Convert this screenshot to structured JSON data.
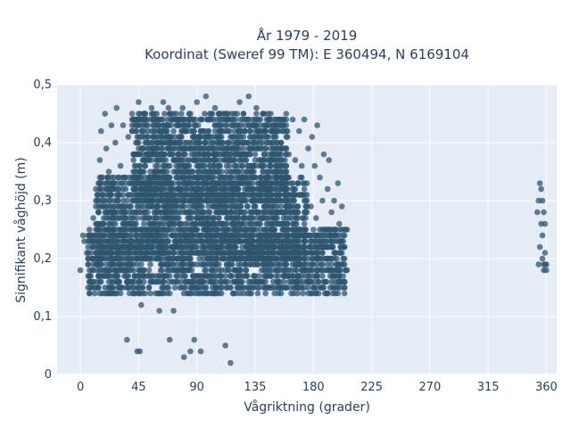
{
  "chart_data": {
    "type": "scatter",
    "title_line1": "År 1979 - 2019",
    "title_line2": "Koordinat (Sweref 99 TM): E 360494, N 6169104",
    "xlabel": "Vågriktning (grader)",
    "ylabel": "Signifikant våghöjd (m)",
    "xlim": [
      -18,
      368
    ],
    "ylim": [
      0,
      0.5
    ],
    "xticks": [
      0,
      45,
      90,
      135,
      180,
      225,
      270,
      315,
      360
    ],
    "xtick_labels": [
      "0",
      "45",
      "90",
      "135",
      "180",
      "225",
      "270",
      "315",
      "360"
    ],
    "yticks": [
      0,
      0.1,
      0.2,
      0.3,
      0.4,
      0.5
    ],
    "ytick_labels": [
      "0",
      "0,1",
      "0,2",
      "0,3",
      "0,4",
      "0,5"
    ],
    "grid": true,
    "background": "#e5ecf6",
    "marker_color": "#2f5670",
    "points": [
      [
        0,
        0.18
      ],
      [
        2,
        0.24
      ],
      [
        3,
        0.23
      ],
      [
        5,
        0.21
      ],
      [
        6,
        0.19
      ],
      [
        7,
        0.17
      ],
      [
        8,
        0.16
      ],
      [
        9,
        0.2
      ],
      [
        10,
        0.22
      ],
      [
        10,
        0.27
      ],
      [
        12,
        0.29
      ],
      [
        12,
        0.25
      ],
      [
        13,
        0.18
      ],
      [
        14,
        0.15
      ],
      [
        15,
        0.33
      ],
      [
        15,
        0.37
      ],
      [
        16,
        0.42
      ],
      [
        17,
        0.31
      ],
      [
        18,
        0.26
      ],
      [
        18,
        0.21
      ],
      [
        19,
        0.45
      ],
      [
        20,
        0.39
      ],
      [
        21,
        0.28
      ],
      [
        22,
        0.35
      ],
      [
        23,
        0.19
      ],
      [
        24,
        0.43
      ],
      [
        25,
        0.32
      ],
      [
        26,
        0.24
      ],
      [
        27,
        0.4
      ],
      [
        28,
        0.16
      ],
      [
        28,
        0.46
      ],
      [
        29,
        0.3
      ],
      [
        30,
        0.27
      ],
      [
        31,
        0.36
      ],
      [
        32,
        0.22
      ],
      [
        33,
        0.43
      ],
      [
        34,
        0.34
      ],
      [
        35,
        0.18
      ],
      [
        36,
        0.06
      ],
      [
        37,
        0.41
      ],
      [
        38,
        0.29
      ],
      [
        39,
        0.25
      ],
      [
        40,
        0.45
      ],
      [
        41,
        0.38
      ],
      [
        41,
        0.14
      ],
      [
        42,
        0.44
      ],
      [
        43,
        0.33
      ],
      [
        44,
        0.04
      ],
      [
        44,
        0.21
      ],
      [
        45,
        0.47
      ],
      [
        46,
        0.04
      ],
      [
        46,
        0.36
      ],
      [
        47,
        0.12
      ],
      [
        48,
        0.42
      ],
      [
        49,
        0.28
      ],
      [
        50,
        0.2
      ],
      [
        50,
        0.45
      ],
      [
        52,
        0.39
      ],
      [
        53,
        0.32
      ],
      [
        54,
        0.24
      ],
      [
        55,
        0.46
      ],
      [
        56,
        0.17
      ],
      [
        57,
        0.41
      ],
      [
        58,
        0.35
      ],
      [
        59,
        0.27
      ],
      [
        60,
        0.44
      ],
      [
        61,
        0.11
      ],
      [
        62,
        0.38
      ],
      [
        63,
        0.3
      ],
      [
        64,
        0.47
      ],
      [
        65,
        0.22
      ],
      [
        66,
        0.42
      ],
      [
        67,
        0.34
      ],
      [
        68,
        0.46
      ],
      [
        69,
        0.06
      ],
      [
        70,
        0.26
      ],
      [
        71,
        0.4
      ],
      [
        72,
        0.11
      ],
      [
        73,
        0.31
      ],
      [
        74,
        0.45
      ],
      [
        75,
        0.19
      ],
      [
        76,
        0.43
      ],
      [
        77,
        0.36
      ],
      [
        78,
        0.28
      ],
      [
        79,
        0.46
      ],
      [
        80,
        0.2
      ],
      [
        80,
        0.03
      ],
      [
        82,
        0.39
      ],
      [
        83,
        0.33
      ],
      [
        84,
        0.44
      ],
      [
        85,
        0.04
      ],
      [
        86,
        0.25
      ],
      [
        87,
        0.41
      ],
      [
        88,
        0.06
      ],
      [
        89,
        0.17
      ],
      [
        90,
        0.47
      ],
      [
        91,
        0.35
      ],
      [
        92,
        0.27
      ],
      [
        93,
        0.04
      ],
      [
        94,
        0.42
      ],
      [
        95,
        0.21
      ],
      [
        96,
        0.38
      ],
      [
        97,
        0.48
      ],
      [
        98,
        0.3
      ],
      [
        99,
        0.16
      ],
      [
        100,
        0.44
      ],
      [
        101,
        0.23
      ],
      [
        102,
        0.4
      ],
      [
        103,
        0.31
      ],
      [
        104,
        0.46
      ],
      [
        105,
        0.19
      ],
      [
        106,
        0.36
      ],
      [
        107,
        0.43
      ],
      [
        108,
        0.26
      ],
      [
        109,
        0.14
      ],
      [
        110,
        0.39
      ],
      [
        111,
        0.29
      ],
      [
        112,
        0.05
      ],
      [
        113,
        0.45
      ],
      [
        114,
        0.22
      ],
      [
        115,
        0.37
      ],
      [
        116,
        0.02
      ],
      [
        117,
        0.33
      ],
      [
        118,
        0.41
      ],
      [
        119,
        0.18
      ],
      [
        120,
        0.44
      ],
      [
        121,
        0.27
      ],
      [
        122,
        0.35
      ],
      [
        123,
        0.47
      ],
      [
        124,
        0.21
      ],
      [
        125,
        0.4
      ],
      [
        126,
        0.31
      ],
      [
        127,
        0.42
      ],
      [
        128,
        0.17
      ],
      [
        129,
        0.38
      ],
      [
        130,
        0.48
      ],
      [
        131,
        0.25
      ],
      [
        132,
        0.43
      ],
      [
        133,
        0.3
      ],
      [
        134,
        0.36
      ],
      [
        135,
        0.2
      ],
      [
        136,
        0.46
      ],
      [
        137,
        0.28
      ],
      [
        138,
        0.41
      ],
      [
        139,
        0.34
      ],
      [
        140,
        0.16
      ],
      [
        141,
        0.45
      ],
      [
        142,
        0.24
      ],
      [
        143,
        0.39
      ],
      [
        144,
        0.32
      ],
      [
        145,
        0.44
      ],
      [
        146,
        0.19
      ],
      [
        147,
        0.37
      ],
      [
        148,
        0.29
      ],
      [
        149,
        0.42
      ],
      [
        150,
        0.22
      ],
      [
        151,
        0.35
      ],
      [
        152,
        0.4
      ],
      [
        153,
        0.17
      ],
      [
        154,
        0.31
      ],
      [
        155,
        0.43
      ],
      [
        156,
        0.26
      ],
      [
        157,
        0.36
      ],
      [
        158,
        0.2
      ],
      [
        159,
        0.41
      ],
      [
        160,
        0.3
      ],
      [
        161,
        0.38
      ],
      [
        162,
        0.15
      ],
      [
        163,
        0.33
      ],
      [
        164,
        0.44
      ],
      [
        165,
        0.24
      ],
      [
        166,
        0.37
      ],
      [
        167,
        0.19
      ],
      [
        168,
        0.29
      ],
      [
        169,
        0.42
      ],
      [
        170,
        0.22
      ],
      [
        171,
        0.36
      ],
      [
        172,
        0.27
      ],
      [
        173,
        0.44
      ],
      [
        174,
        0.17
      ],
      [
        175,
        0.33
      ],
      [
        176,
        0.39
      ],
      [
        177,
        0.24
      ],
      [
        178,
        0.29
      ],
      [
        179,
        0.41
      ],
      [
        180,
        0.19
      ],
      [
        181,
        0.36
      ],
      [
        182,
        0.27
      ],
      [
        183,
        0.43
      ],
      [
        184,
        0.22
      ],
      [
        185,
        0.34
      ],
      [
        186,
        0.18
      ],
      [
        187,
        0.3
      ],
      [
        188,
        0.38
      ],
      [
        189,
        0.25
      ],
      [
        190,
        0.2
      ],
      [
        191,
        0.32
      ],
      [
        192,
        0.37
      ],
      [
        193,
        0.23
      ],
      [
        194,
        0.28
      ],
      [
        195,
        0.17
      ],
      [
        196,
        0.3
      ],
      [
        197,
        0.25
      ],
      [
        198,
        0.2
      ],
      [
        199,
        0.33
      ],
      [
        200,
        0.26
      ],
      [
        201,
        0.22
      ],
      [
        202,
        0.29
      ],
      [
        203,
        0.19
      ],
      [
        204,
        0.25
      ],
      [
        205,
        0.18
      ],
      [
        206,
        0.25
      ],
      [
        206,
        0.18
      ],
      [
        353,
        0.28
      ],
      [
        354,
        0.3
      ],
      [
        354,
        0.19
      ],
      [
        355,
        0.33
      ],
      [
        355,
        0.22
      ],
      [
        356,
        0.26
      ],
      [
        356,
        0.32
      ],
      [
        357,
        0.24
      ],
      [
        357,
        0.3
      ],
      [
        357,
        0.2
      ],
      [
        358,
        0.28
      ],
      [
        358,
        0.19
      ],
      [
        358,
        0.18
      ],
      [
        359,
        0.21
      ],
      [
        359,
        0.19
      ],
      [
        359,
        0.26
      ],
      [
        360,
        0.18
      ],
      [
        360,
        0.19
      ]
    ],
    "dense_regions": [
      {
        "x": [
          6,
          205
        ],
        "y": [
          0.14,
          0.25
        ]
      },
      {
        "x": [
          12,
          175
        ],
        "y": [
          0.2,
          0.34
        ]
      },
      {
        "x": [
          40,
          160
        ],
        "y": [
          0.3,
          0.45
        ]
      }
    ]
  }
}
